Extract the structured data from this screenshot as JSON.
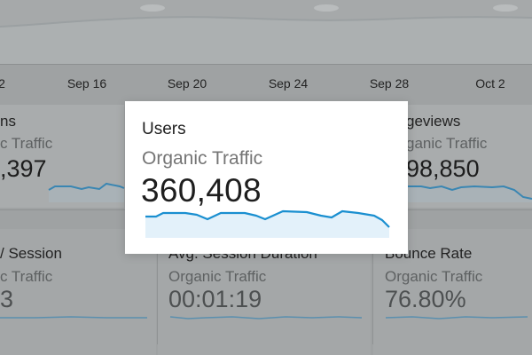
{
  "axis": {
    "dates": [
      "2",
      "Sep 16",
      "Sep 20",
      "Sep 24",
      "Sep 28",
      "Oct 2"
    ]
  },
  "cards": {
    "sessions": {
      "title": "ns",
      "subtitle": "c Traffic",
      "value": ",397"
    },
    "pageviews": {
      "title": "geviews",
      "subtitle": "ganic Traffic",
      "value": "98,850"
    },
    "pages_session": {
      "title": "/ Session",
      "subtitle": "c Traffic",
      "value": "3"
    },
    "avg_session": {
      "title": "Avg. Session Duration",
      "subtitle": "Organic Traffic",
      "value": "00:01:19"
    },
    "bounce_rate": {
      "title": "Bounce Rate",
      "subtitle": "Organic Traffic",
      "value": "76.80%"
    }
  },
  "popup": {
    "title": "Users",
    "subtitle": "Organic Traffic",
    "value": "360,408"
  },
  "colors": {
    "line": "#1a8fd0",
    "fill": "#e3f1fa",
    "background_dim": "#9fa2a3"
  }
}
